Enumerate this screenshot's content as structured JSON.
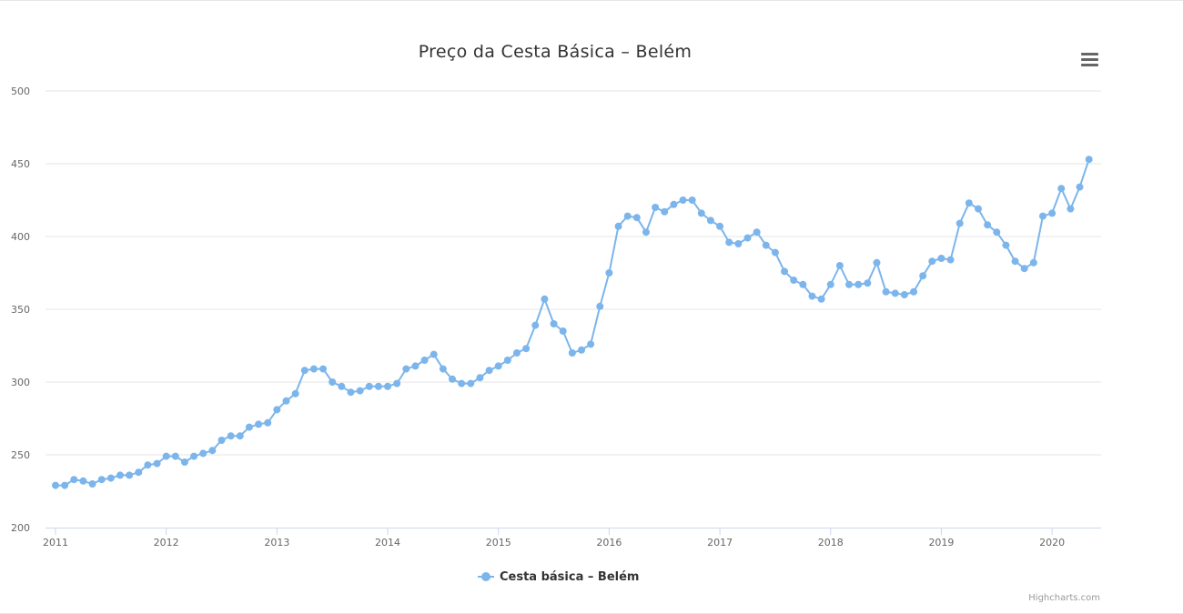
{
  "colors": {
    "series": "#7cb5ec",
    "grid": "#e6e6e6",
    "axis": "#ccd6eb",
    "text": "#333333"
  },
  "menu": {
    "icon": "hamburger-menu-icon"
  },
  "credits": "Highcharts.com",
  "chart_data": {
    "type": "line",
    "title": "Preço da Cesta Básica – Belém",
    "xlabel": "",
    "ylabel": "",
    "ylim": [
      200,
      500
    ],
    "yticks": [
      200,
      250,
      300,
      350,
      400,
      450,
      500
    ],
    "xticks": [
      "2011",
      "2012",
      "2013",
      "2014",
      "2015",
      "2016",
      "2017",
      "2018",
      "2019",
      "2020"
    ],
    "x_start": "2011-01",
    "x_step": "monthly",
    "grid": true,
    "legend": "bottom-center",
    "series": [
      {
        "name": "Cesta básica – Belém",
        "values": [
          229,
          229,
          233,
          232,
          230,
          233,
          234,
          236,
          236,
          238,
          243,
          244,
          249,
          249,
          245,
          249,
          251,
          253,
          260,
          263,
          263,
          269,
          271,
          272,
          281,
          287,
          292,
          308,
          309,
          309,
          300,
          297,
          293,
          294,
          297,
          297,
          297,
          299,
          309,
          311,
          315,
          319,
          309,
          302,
          299,
          299,
          303,
          308,
          311,
          315,
          320,
          323,
          339,
          357,
          340,
          335,
          320,
          322,
          326,
          352,
          375,
          407,
          414,
          413,
          403,
          420,
          417,
          422,
          425,
          425,
          416,
          411,
          407,
          396,
          395,
          399,
          403,
          394,
          389,
          376,
          370,
          367,
          359,
          357,
          367,
          380,
          367,
          367,
          368,
          382,
          362,
          361,
          360,
          362,
          373,
          383,
          385,
          384,
          409,
          423,
          419,
          408,
          403,
          394,
          383,
          378,
          382,
          414,
          416,
          433,
          419,
          434,
          453
        ]
      }
    ]
  }
}
